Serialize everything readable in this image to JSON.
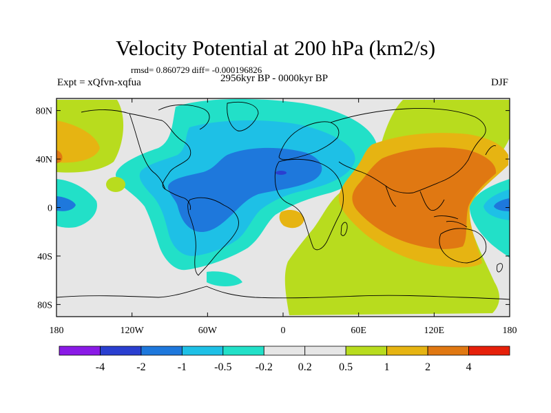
{
  "figure": {
    "title": "Velocity Potential at 200 hPa (km2/s)",
    "stats": "rmsd= 0.860729 diff= -0.000196826",
    "experiment": "Expt = xQfvn-xqfua",
    "period": "2956kyr BP - 0000kyr BP",
    "season": "DJF"
  },
  "map": {
    "lon_ticks": [
      "180",
      "120W",
      "60W",
      "0",
      "60E",
      "120E",
      "180"
    ],
    "lat_ticks": [
      "80N",
      "40N",
      "0",
      "40S",
      "80S"
    ],
    "lon_values": [
      -180,
      -120,
      -60,
      0,
      60,
      120,
      180
    ],
    "lat_values": [
      80,
      40,
      0,
      -40,
      -80
    ]
  },
  "colorbar": {
    "labels": [
      "-4",
      "-2",
      "-1",
      "-0.5",
      "-0.2",
      "0.2",
      "0.5",
      "1",
      "2",
      "4"
    ],
    "colors": [
      "#8a1ae6",
      "#2a3fd0",
      "#1e78dc",
      "#1ec0e6",
      "#22e0c8",
      "#e6e6e6",
      "#b8dc1e",
      "#e6b412",
      "#e07812",
      "#e6200a"
    ]
  }
}
